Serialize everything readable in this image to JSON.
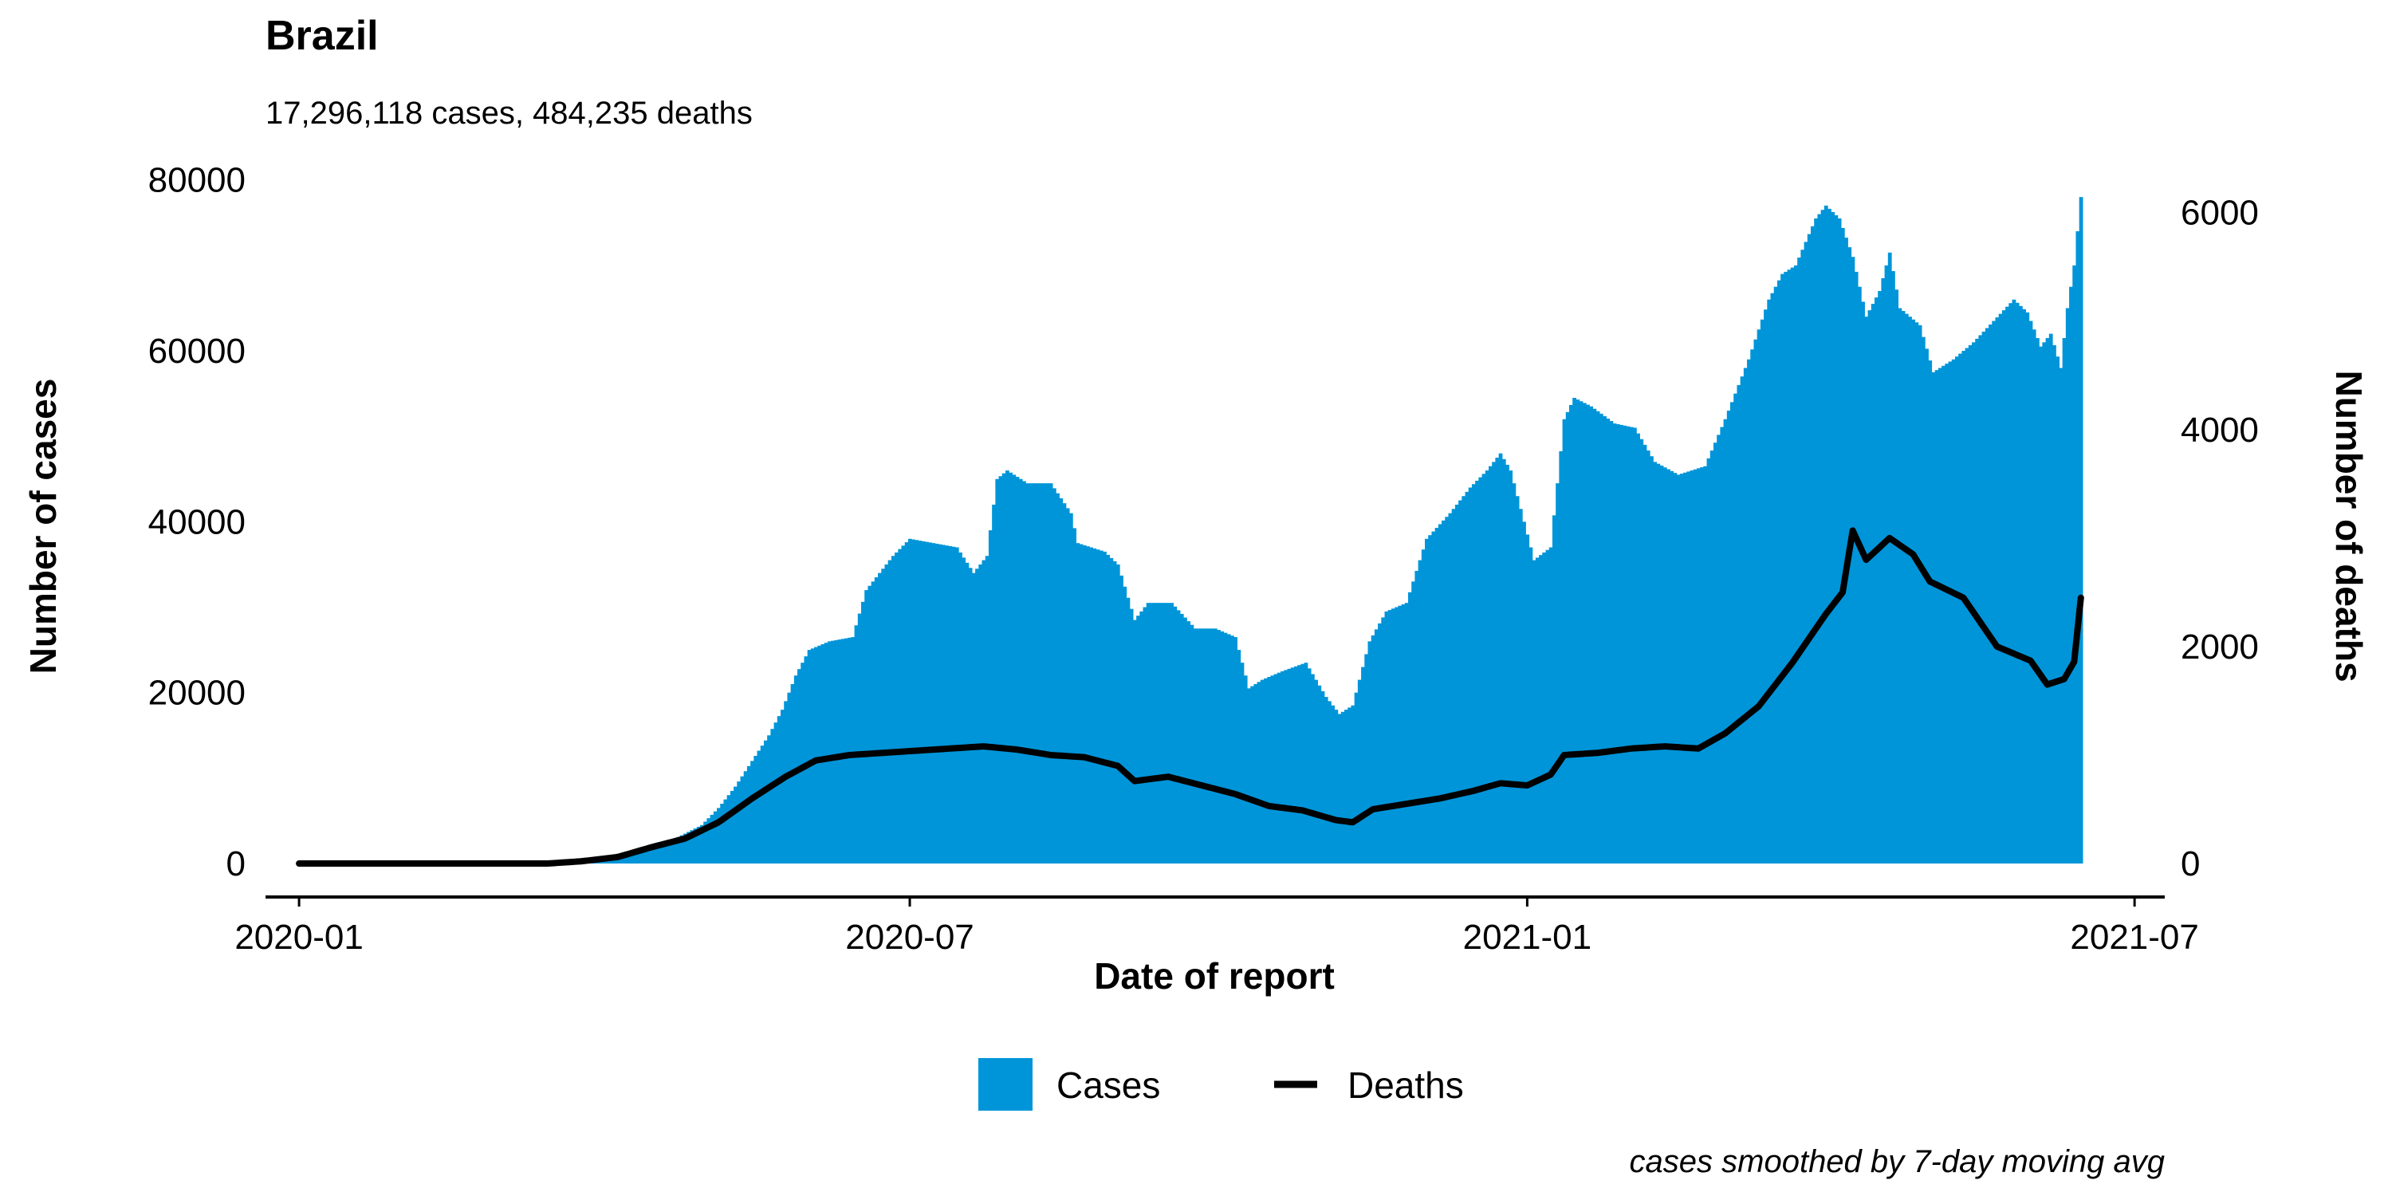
{
  "chart_data": {
    "type": "bar+line",
    "title": "Brazil",
    "subtitle": "17,296,118 cases, 484,235 deaths",
    "xlabel": "Date of report",
    "ylabel_left": "Number of cases",
    "ylabel_right": "Number of deaths",
    "caption": "cases smoothed by 7-day moving avg",
    "x_ticks": [
      "2020-01",
      "2020-07",
      "2021-01",
      "2021-07"
    ],
    "x_range": [
      "2019-12-22",
      "2021-07-10"
    ],
    "y_left_ticks": [
      "0",
      "20000",
      "40000",
      "60000",
      "80000"
    ],
    "y_left_range": [
      0,
      81000
    ],
    "y_right_ticks": [
      "0",
      "2000",
      "4000",
      "6000"
    ],
    "y_right_range": [
      0,
      6380
    ],
    "legend": {
      "position": "bottom",
      "items": [
        {
          "label": "Cases",
          "color": "#0095d9"
        },
        {
          "label": "Deaths",
          "color": "#000000"
        }
      ]
    },
    "grid": false,
    "series": [
      {
        "name": "Cases",
        "type": "bar",
        "color": "#0095d9",
        "points": [
          [
            "2020-01-01",
            0
          ],
          [
            "2020-02-25",
            0
          ],
          [
            "2020-03-10",
            30
          ],
          [
            "2020-03-20",
            250
          ],
          [
            "2020-03-31",
            800
          ],
          [
            "2020-04-10",
            1500
          ],
          [
            "2020-04-20",
            2500
          ],
          [
            "2020-04-30",
            4500
          ],
          [
            "2020-05-05",
            6500
          ],
          [
            "2020-05-10",
            9000
          ],
          [
            "2020-05-15",
            12000
          ],
          [
            "2020-05-20",
            15000
          ],
          [
            "2020-05-24",
            18000
          ],
          [
            "2020-05-28",
            22000
          ],
          [
            "2020-06-01",
            25000
          ],
          [
            "2020-06-07",
            26000
          ],
          [
            "2020-06-14",
            26500
          ],
          [
            "2020-06-18",
            32000
          ],
          [
            "2020-06-22",
            34000
          ],
          [
            "2020-06-26",
            36000
          ],
          [
            "2020-07-01",
            38000
          ],
          [
            "2020-07-08",
            37500
          ],
          [
            "2020-07-15",
            37000
          ],
          [
            "2020-07-20",
            34000
          ],
          [
            "2020-07-24",
            36000
          ],
          [
            "2020-07-27",
            45000
          ],
          [
            "2020-07-30",
            46000
          ],
          [
            "2020-08-05",
            44500
          ],
          [
            "2020-08-12",
            44500
          ],
          [
            "2020-08-18",
            41000
          ],
          [
            "2020-08-20",
            37500
          ],
          [
            "2020-08-28",
            36500
          ],
          [
            "2020-09-01",
            35000
          ],
          [
            "2020-09-06",
            28500
          ],
          [
            "2020-09-10",
            30500
          ],
          [
            "2020-09-17",
            30500
          ],
          [
            "2020-09-24",
            27500
          ],
          [
            "2020-09-30",
            27500
          ],
          [
            "2020-10-06",
            26500
          ],
          [
            "2020-10-10",
            20500
          ],
          [
            "2020-10-14",
            21500
          ],
          [
            "2020-10-20",
            22500
          ],
          [
            "2020-10-27",
            23500
          ],
          [
            "2020-11-02",
            19500
          ],
          [
            "2020-11-06",
            17500
          ],
          [
            "2020-11-10",
            18500
          ],
          [
            "2020-11-15",
            26000
          ],
          [
            "2020-11-20",
            29500
          ],
          [
            "2020-11-26",
            30500
          ],
          [
            "2020-12-02",
            38000
          ],
          [
            "2020-12-09",
            41000
          ],
          [
            "2020-12-15",
            44000
          ],
          [
            "2020-12-20",
            46000
          ],
          [
            "2020-12-24",
            48000
          ],
          [
            "2020-12-27",
            46000
          ],
          [
            "2020-12-31",
            40000
          ],
          [
            "2021-01-03",
            35500
          ],
          [
            "2021-01-08",
            37000
          ],
          [
            "2021-01-12",
            52000
          ],
          [
            "2021-01-15",
            54500
          ],
          [
            "2021-01-20",
            53500
          ],
          [
            "2021-01-27",
            51500
          ],
          [
            "2021-02-02",
            51000
          ],
          [
            "2021-02-08",
            47000
          ],
          [
            "2021-02-15",
            45500
          ],
          [
            "2021-02-23",
            46500
          ],
          [
            "2021-03-01",
            52000
          ],
          [
            "2021-03-08",
            59000
          ],
          [
            "2021-03-14",
            66000
          ],
          [
            "2021-03-18",
            69000
          ],
          [
            "2021-03-22",
            70000
          ],
          [
            "2021-03-28",
            75500
          ],
          [
            "2021-03-31",
            77000
          ],
          [
            "2021-04-04",
            75500
          ],
          [
            "2021-04-08",
            71000
          ],
          [
            "2021-04-12",
            64000
          ],
          [
            "2021-04-16",
            67000
          ],
          [
            "2021-04-19",
            71500
          ],
          [
            "2021-04-22",
            65000
          ],
          [
            "2021-04-28",
            63000
          ],
          [
            "2021-05-02",
            57500
          ],
          [
            "2021-05-08",
            59000
          ],
          [
            "2021-05-14",
            61000
          ],
          [
            "2021-05-20",
            63500
          ],
          [
            "2021-05-26",
            66000
          ],
          [
            "2021-05-30",
            64500
          ],
          [
            "2021-06-03",
            60500
          ],
          [
            "2021-06-06",
            62000
          ],
          [
            "2021-06-09",
            58000
          ],
          [
            "2021-06-11",
            65000
          ],
          [
            "2021-06-13",
            70000
          ],
          [
            "2021-06-15",
            78000
          ]
        ]
      },
      {
        "name": "Deaths",
        "type": "line",
        "color": "#000000",
        "points": [
          [
            "2020-01-01",
            0
          ],
          [
            "2020-03-15",
            0
          ],
          [
            "2020-03-25",
            20
          ],
          [
            "2020-04-05",
            60
          ],
          [
            "2020-04-15",
            150
          ],
          [
            "2020-04-25",
            230
          ],
          [
            "2020-05-05",
            380
          ],
          [
            "2020-05-15",
            600
          ],
          [
            "2020-05-25",
            800
          ],
          [
            "2020-06-03",
            950
          ],
          [
            "2020-06-13",
            1000
          ],
          [
            "2020-06-23",
            1020
          ],
          [
            "2020-07-03",
            1040
          ],
          [
            "2020-07-13",
            1060
          ],
          [
            "2020-07-23",
            1080
          ],
          [
            "2020-08-02",
            1050
          ],
          [
            "2020-08-12",
            1000
          ],
          [
            "2020-08-22",
            980
          ],
          [
            "2020-09-01",
            900
          ],
          [
            "2020-09-06",
            760
          ],
          [
            "2020-09-16",
            800
          ],
          [
            "2020-09-26",
            720
          ],
          [
            "2020-10-06",
            640
          ],
          [
            "2020-10-16",
            530
          ],
          [
            "2020-10-26",
            490
          ],
          [
            "2020-11-05",
            400
          ],
          [
            "2020-11-10",
            380
          ],
          [
            "2020-11-16",
            500
          ],
          [
            "2020-11-26",
            550
          ],
          [
            "2020-12-06",
            600
          ],
          [
            "2020-12-16",
            670
          ],
          [
            "2020-12-24",
            740
          ],
          [
            "2021-01-01",
            720
          ],
          [
            "2021-01-08",
            820
          ],
          [
            "2021-01-12",
            1000
          ],
          [
            "2021-01-22",
            1020
          ],
          [
            "2021-02-01",
            1060
          ],
          [
            "2021-02-11",
            1080
          ],
          [
            "2021-02-21",
            1060
          ],
          [
            "2021-03-01",
            1200
          ],
          [
            "2021-03-11",
            1450
          ],
          [
            "2021-03-21",
            1850
          ],
          [
            "2021-03-31",
            2300
          ],
          [
            "2021-04-05",
            2500
          ],
          [
            "2021-04-08",
            3070
          ],
          [
            "2021-04-12",
            2800
          ],
          [
            "2021-04-19",
            3000
          ],
          [
            "2021-04-26",
            2850
          ],
          [
            "2021-05-01",
            2600
          ],
          [
            "2021-05-11",
            2450
          ],
          [
            "2021-05-21",
            2000
          ],
          [
            "2021-05-31",
            1870
          ],
          [
            "2021-06-05",
            1650
          ],
          [
            "2021-06-10",
            1700
          ],
          [
            "2021-06-13",
            1860
          ],
          [
            "2021-06-15",
            2450
          ]
        ]
      }
    ]
  }
}
